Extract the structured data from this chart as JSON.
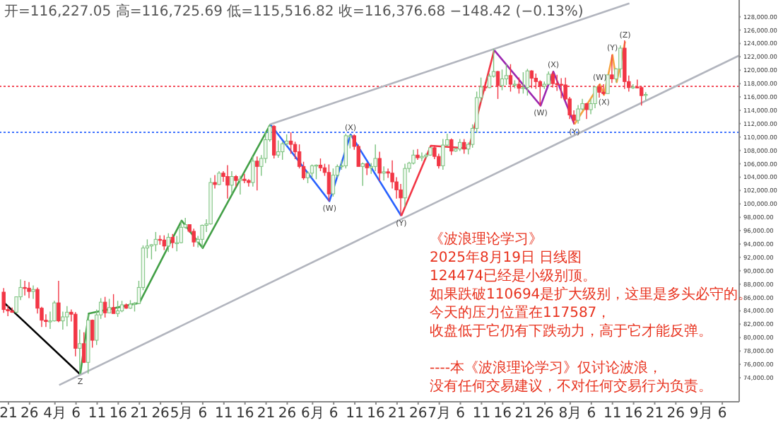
{
  "chart_data": {
    "type": "candlestick",
    "x": [
      "2025-03-20",
      "2025-03-21",
      "2025-03-22",
      "2025-03-23",
      "2025-03-24",
      "2025-03-25",
      "2025-03-26",
      "2025-03-27",
      "2025-03-28",
      "2025-03-29",
      "2025-03-30",
      "2025-03-31",
      "2025-04-01",
      "2025-04-02",
      "2025-04-03",
      "2025-04-04",
      "2025-04-05",
      "2025-04-06",
      "2025-04-07",
      "2025-04-08",
      "2025-04-09",
      "2025-04-10",
      "2025-04-11",
      "2025-04-12",
      "2025-04-13",
      "2025-04-14",
      "2025-04-15",
      "2025-04-16",
      "2025-04-17",
      "2025-04-18",
      "2025-04-19",
      "2025-04-20",
      "2025-04-21",
      "2025-04-22",
      "2025-04-23",
      "2025-04-24",
      "2025-04-25",
      "2025-04-26",
      "2025-04-27",
      "2025-04-28",
      "2025-04-29",
      "2025-04-30",
      "2025-05-01",
      "2025-05-02",
      "2025-05-03",
      "2025-05-04",
      "2025-05-05",
      "2025-05-06",
      "2025-05-07",
      "2025-05-08",
      "2025-05-09",
      "2025-05-10",
      "2025-05-11",
      "2025-05-12",
      "2025-05-13",
      "2025-05-14",
      "2025-05-15",
      "2025-05-16",
      "2025-05-17",
      "2025-05-18",
      "2025-05-19",
      "2025-05-20",
      "2025-05-21",
      "2025-05-22",
      "2025-05-23",
      "2025-05-24",
      "2025-05-25",
      "2025-05-26",
      "2025-05-27",
      "2025-05-28",
      "2025-05-29",
      "2025-05-30",
      "2025-05-31",
      "2025-06-01",
      "2025-06-02",
      "2025-06-03",
      "2025-06-04",
      "2025-06-05",
      "2025-06-06",
      "2025-06-07",
      "2025-06-08",
      "2025-06-09",
      "2025-06-10",
      "2025-06-11",
      "2025-06-12",
      "2025-06-13",
      "2025-06-14",
      "2025-06-15",
      "2025-06-16",
      "2025-06-17",
      "2025-06-18",
      "2025-06-19",
      "2025-06-20",
      "2025-06-21",
      "2025-06-22",
      "2025-06-23",
      "2025-06-24",
      "2025-06-25",
      "2025-06-26",
      "2025-06-27",
      "2025-06-28",
      "2025-06-29",
      "2025-06-30",
      "2025-07-01",
      "2025-07-02",
      "2025-07-03",
      "2025-07-04",
      "2025-07-05",
      "2025-07-06",
      "2025-07-07",
      "2025-07-08",
      "2025-07-09",
      "2025-07-10",
      "2025-07-11",
      "2025-07-12",
      "2025-07-13",
      "2025-07-14",
      "2025-07-15",
      "2025-07-16",
      "2025-07-17",
      "2025-07-18",
      "2025-07-19",
      "2025-07-20",
      "2025-07-21",
      "2025-07-22",
      "2025-07-23",
      "2025-07-24",
      "2025-07-25",
      "2025-07-26",
      "2025-07-27",
      "2025-07-28",
      "2025-07-29",
      "2025-07-30",
      "2025-07-31",
      "2025-08-01",
      "2025-08-02",
      "2025-08-03",
      "2025-08-04",
      "2025-08-05",
      "2025-08-06",
      "2025-08-07",
      "2025-08-08",
      "2025-08-09",
      "2025-08-10",
      "2025-08-11",
      "2025-08-12",
      "2025-08-13",
      "2025-08-14",
      "2025-08-15",
      "2025-08-16",
      "2025-08-17",
      "2025-08-18",
      "2025-08-19"
    ],
    "ohlc": [
      [
        86800,
        87400,
        83700,
        84200
      ],
      [
        84200,
        84800,
        83200,
        84000
      ],
      [
        84000,
        84500,
        83700,
        83800
      ],
      [
        83800,
        86100,
        83600,
        86100
      ],
      [
        86100,
        88700,
        85600,
        87500
      ],
      [
        87500,
        88500,
        86300,
        87400
      ],
      [
        87400,
        88300,
        85900,
        86900
      ],
      [
        86900,
        87800,
        85800,
        87200
      ],
      [
        87200,
        87500,
        83600,
        84400
      ],
      [
        84400,
        84600,
        81600,
        82600
      ],
      [
        82600,
        83500,
        81600,
        82400
      ],
      [
        82400,
        83900,
        81300,
        82500
      ],
      [
        82500,
        85500,
        82400,
        85200
      ],
      [
        85200,
        88500,
        82300,
        82500
      ],
      [
        82500,
        83900,
        81200,
        83100
      ],
      [
        83100,
        84700,
        81700,
        83800
      ],
      [
        83800,
        84200,
        82400,
        83500
      ],
      [
        83500,
        83800,
        77200,
        78400
      ],
      [
        78400,
        81200,
        74500,
        79100
      ],
      [
        79100,
        80800,
        76200,
        76300
      ],
      [
        76300,
        83500,
        74600,
        82600
      ],
      [
        82600,
        82700,
        78500,
        79600
      ],
      [
        79600,
        84200,
        78900,
        83400
      ],
      [
        83400,
        85900,
        82800,
        85300
      ],
      [
        85300,
        86100,
        83000,
        83700
      ],
      [
        83700,
        85800,
        83700,
        84500
      ],
      [
        84500,
        86500,
        83600,
        83600
      ],
      [
        83600,
        85500,
        83100,
        84000
      ],
      [
        84000,
        85500,
        83800,
        84900
      ],
      [
        84900,
        85100,
        84300,
        84400
      ],
      [
        84400,
        85600,
        84300,
        85000
      ],
      [
        85000,
        85300,
        83900,
        85100
      ],
      [
        85100,
        88500,
        85100,
        87500
      ],
      [
        87500,
        93800,
        87100,
        93400
      ],
      [
        93400,
        94700,
        91900,
        93700
      ],
      [
        93700,
        94000,
        91700,
        93900
      ],
      [
        93900,
        95800,
        92900,
        94700
      ],
      [
        94700,
        95300,
        93900,
        94600
      ],
      [
        94600,
        95300,
        93100,
        93700
      ],
      [
        93700,
        95600,
        92800,
        95000
      ],
      [
        95000,
        95500,
        93400,
        94200
      ],
      [
        94200,
        95200,
        92900,
        94200
      ],
      [
        94200,
        97400,
        94100,
        96500
      ],
      [
        96500,
        97900,
        96300,
        96900
      ],
      [
        96900,
        96900,
        95700,
        95900
      ],
      [
        95900,
        96300,
        93600,
        94300
      ],
      [
        94300,
        95200,
        93500,
        94700
      ],
      [
        94700,
        96900,
        93400,
        96800
      ],
      [
        96800,
        97700,
        95800,
        97000
      ],
      [
        97000,
        103900,
        96900,
        103200
      ],
      [
        103200,
        104300,
        102300,
        102900
      ],
      [
        102900,
        104900,
        102800,
        104600
      ],
      [
        104600,
        104900,
        103300,
        104100
      ],
      [
        104100,
        105800,
        100800,
        102800
      ],
      [
        102800,
        104900,
        101500,
        104100
      ],
      [
        104100,
        104300,
        102600,
        103500
      ],
      [
        103500,
        104200,
        101400,
        103700
      ],
      [
        103700,
        104500,
        103100,
        103500
      ],
      [
        103500,
        103700,
        102600,
        103200
      ],
      [
        103200,
        107100,
        102600,
        106400
      ],
      [
        106400,
        107100,
        102000,
        105600
      ],
      [
        105600,
        107300,
        104200,
        106800
      ],
      [
        106800,
        110800,
        106100,
        109600
      ],
      [
        109600,
        111900,
        109300,
        111600
      ],
      [
        111600,
        111800,
        106800,
        107300
      ],
      [
        107300,
        109500,
        106900,
        107800
      ],
      [
        107800,
        109300,
        106600,
        109000
      ],
      [
        109000,
        110400,
        108700,
        109400
      ],
      [
        109400,
        110700,
        107500,
        108900
      ],
      [
        108900,
        109300,
        106700,
        107800
      ],
      [
        107800,
        108900,
        105300,
        105600
      ],
      [
        105600,
        106300,
        103600,
        103900
      ],
      [
        103900,
        104900,
        103100,
        104600
      ],
      [
        104600,
        105900,
        103900,
        105700
      ],
      [
        105700,
        105900,
        103700,
        105800
      ],
      [
        105800,
        106800,
        104900,
        105400
      ],
      [
        105400,
        106000,
        104200,
        104700
      ],
      [
        104700,
        105900,
        100400,
        101500
      ],
      [
        101500,
        105300,
        101100,
        104300
      ],
      [
        104300,
        105900,
        103900,
        105600
      ],
      [
        105600,
        106500,
        105100,
        105700
      ],
      [
        105700,
        110500,
        105300,
        110200
      ],
      [
        110200,
        110400,
        108300,
        110200
      ],
      [
        110200,
        110400,
        108100,
        108600
      ],
      [
        108600,
        108900,
        105600,
        105600
      ],
      [
        105600,
        106200,
        102700,
        106000
      ],
      [
        106000,
        106200,
        104300,
        105400
      ],
      [
        105400,
        106100,
        104500,
        105600
      ],
      [
        105600,
        108900,
        104900,
        106800
      ],
      [
        106800,
        107800,
        103400,
        104600
      ],
      [
        104600,
        105600,
        103500,
        104800
      ],
      [
        104800,
        105300,
        103900,
        104600
      ],
      [
        104600,
        106500,
        102300,
        103300
      ],
      [
        103300,
        104000,
        100800,
        102100
      ],
      [
        102100,
        103000,
        98200,
        100900
      ],
      [
        100900,
        106000,
        99600,
        105300
      ],
      [
        105300,
        106300,
        104700,
        106100
      ],
      [
        106100,
        108100,
        105900,
        107300
      ],
      [
        107300,
        108200,
        106600,
        106900
      ],
      [
        106900,
        107700,
        106400,
        107100
      ],
      [
        107100,
        107600,
        106800,
        107300
      ],
      [
        107300,
        108500,
        107200,
        108400
      ],
      [
        108400,
        108800,
        106700,
        107100
      ],
      [
        107100,
        107500,
        105300,
        105700
      ],
      [
        105700,
        109700,
        105100,
        108800
      ],
      [
        108800,
        110500,
        108600,
        109600
      ],
      [
        109600,
        109800,
        107300,
        107900
      ],
      [
        107900,
        108400,
        107800,
        108200
      ],
      [
        108200,
        109700,
        107900,
        109200
      ],
      [
        109200,
        109700,
        107500,
        108200
      ],
      [
        108200,
        109200,
        107400,
        108900
      ],
      [
        108900,
        111900,
        108400,
        111300
      ],
      [
        111300,
        116800,
        110600,
        115900
      ],
      [
        115900,
        118900,
        115200,
        117500
      ],
      [
        117500,
        118200,
        116900,
        117400
      ],
      [
        117400,
        119500,
        117300,
        119100
      ],
      [
        119100,
        123200,
        118900,
        119800
      ],
      [
        119800,
        119900,
        115700,
        117700
      ],
      [
        117700,
        120100,
        117000,
        118700
      ],
      [
        118700,
        120900,
        117800,
        119200
      ],
      [
        119200,
        120900,
        116800,
        117900
      ],
      [
        117900,
        118500,
        117300,
        117900
      ],
      [
        117900,
        118900,
        116500,
        117300
      ],
      [
        117300,
        119700,
        116500,
        117400
      ],
      [
        117400,
        120200,
        116200,
        119900
      ],
      [
        119900,
        120000,
        117300,
        118800
      ],
      [
        118800,
        119500,
        117200,
        118300
      ],
      [
        118300,
        118500,
        114700,
        117600
      ],
      [
        117600,
        118300,
        117200,
        117900
      ],
      [
        117900,
        119800,
        117800,
        119400
      ],
      [
        119400,
        119800,
        117400,
        118000
      ],
      [
        118000,
        119300,
        116900,
        117900
      ],
      [
        117900,
        118800,
        115800,
        117800
      ],
      [
        117800,
        118900,
        115500,
        115700
      ],
      [
        115700,
        116000,
        112700,
        113300
      ],
      [
        113300,
        114000,
        111900,
        112500
      ],
      [
        112500,
        114800,
        112000,
        114200
      ],
      [
        114200,
        115700,
        114000,
        115000
      ],
      [
        115000,
        115100,
        112700,
        114100
      ],
      [
        114100,
        115700,
        113400,
        115000
      ],
      [
        115000,
        117600,
        114300,
        117500
      ],
      [
        117500,
        117900,
        115900,
        116700
      ],
      [
        116700,
        117900,
        116300,
        116500
      ],
      [
        116500,
        119300,
        116500,
        119300
      ],
      [
        119300,
        122300,
        118100,
        118700
      ],
      [
        118700,
        120300,
        118200,
        120200
      ],
      [
        120200,
        123700,
        118900,
        123300
      ],
      [
        123300,
        124474,
        117200,
        118300
      ],
      [
        118300,
        119200,
        116800,
        117400
      ],
      [
        117400,
        117900,
        117200,
        117500
      ],
      [
        117500,
        118600,
        117300,
        117400
      ],
      [
        117400,
        117600,
        114700,
        116200
      ],
      [
        116227.05,
        116725.69,
        115516.82,
        116376.68
      ]
    ],
    "series": [
      {
        "type": "line",
        "color": "#000000",
        "x": [
          "2025-03-20",
          "2025-04-07"
        ],
        "values": [
          85200,
          74500
        ]
      },
      {
        "type": "line",
        "color": "#43a047",
        "x": [
          "2025-04-07",
          "2025-04-09",
          "2025-04-21",
          "2025-05-01",
          "2025-05-06",
          "2025-05-22"
        ],
        "values": [
          74500,
          83600,
          85200,
          97500,
          93400,
          111900
        ]
      },
      {
        "type": "line",
        "color": "#2962ff",
        "x": [
          "2025-05-22",
          "2025-06-05",
          "2025-06-10",
          "2025-06-22"
        ],
        "values": [
          111900,
          100400,
          110400,
          98200
        ]
      },
      {
        "type": "line",
        "color": "#f23645",
        "x": [
          "2025-06-22",
          "2025-06-29",
          "2025-07-08",
          "2025-07-14"
        ],
        "values": [
          98200,
          108700,
          108300,
          123000
        ]
      },
      {
        "type": "line",
        "color": "#9c27b0",
        "x": [
          "2025-07-14",
          "2025-07-25",
          "2025-07-28",
          "2025-08-02"
        ],
        "values": [
          123000,
          114700,
          119800,
          111900
        ]
      },
      {
        "type": "line",
        "color": "#f7a440",
        "x": [
          "2025-08-02",
          "2025-08-08",
          "2025-08-09",
          "2025-08-11",
          "2025-08-12",
          "2025-08-14"
        ],
        "values": [
          111900,
          117900,
          116300,
          122300,
          118200,
          124300
        ]
      },
      {
        "type": "line",
        "color": "#b2b5be",
        "x": [
          "2025-04-02",
          "2025-09-10"
        ],
        "values": [
          72900,
          122200
        ]
      },
      {
        "type": "line",
        "color": "#b2b5be",
        "x": [
          "2025-05-22",
          "2025-08-15"
        ],
        "values": [
          111900,
          130000
        ]
      }
    ],
    "ref_lines": [
      {
        "axis": "y",
        "value": 117587,
        "color": "#f23645",
        "line_style": "dotted"
      },
      {
        "axis": "y",
        "value": 110694,
        "color": "#2962ff",
        "line_style": "dotted"
      }
    ],
    "annotations": [
      "开=116,227.05 高=116,725.69 低=115,516.82 收=116,376.68 −148.42 (−0.13%)",
      "《波浪理论学习》",
      "2025年8月19日 日线图",
      "124474已经是小级别顶。",
      "如果跌破110694是扩大级别，这里是多头必守的。",
      "今天的压力位置在117587，",
      "收盘低于它仍有下跌动力，高于它才能反弹。",
      "----本《波浪理论学习》仅讨论波浪，",
      "没有任何交易建议，不对任何交易行为负责。",
      {
        "text": "Z",
        "x": "2025-04-07",
        "y": 74500
      },
      {
        "text": "(W)",
        "x": "2025-06-05",
        "y": 100400
      },
      {
        "text": "(X)",
        "x": "2025-06-10",
        "y": 110400
      },
      {
        "text": "(Y)",
        "x": "2025-06-22",
        "y": 98200
      },
      {
        "text": "(W)",
        "x": "2025-07-25",
        "y": 114700
      },
      {
        "text": "(X)",
        "x": "2025-07-28",
        "y": 119800
      },
      {
        "text": "(Y)",
        "x": "2025-08-02",
        "y": 111900
      },
      {
        "text": "(W)",
        "x": "2025-08-08",
        "y": 117900
      },
      {
        "text": "(X)",
        "x": "2025-08-09",
        "y": 116300
      },
      {
        "text": "(Y)",
        "x": "2025-08-11",
        "y": 122300
      },
      {
        "text": "(Z)",
        "x": "2025-08-14",
        "y": 124300
      }
    ],
    "xlim": [
      "2025-03-19",
      "2025-09-10"
    ],
    "xticks": [
      {
        "value": "2025-03-21",
        "label": "21"
      },
      {
        "value": "2025-03-26",
        "label": "26"
      },
      {
        "value": "2025-04-01",
        "label": "4月"
      },
      {
        "value": "2025-04-06",
        "label": "6"
      },
      {
        "value": "2025-04-11",
        "label": "11"
      },
      {
        "value": "2025-04-16",
        "label": "16"
      },
      {
        "value": "2025-04-21",
        "label": "21"
      },
      {
        "value": "2025-04-26",
        "label": "26"
      },
      {
        "value": "2025-05-01",
        "label": "5月"
      },
      {
        "value": "2025-05-06",
        "label": "6"
      },
      {
        "value": "2025-05-11",
        "label": "11"
      },
      {
        "value": "2025-05-16",
        "label": "16"
      },
      {
        "value": "2025-05-21",
        "label": "21"
      },
      {
        "value": "2025-05-26",
        "label": "26"
      },
      {
        "value": "2025-06-01",
        "label": "6月"
      },
      {
        "value": "2025-06-06",
        "label": "6"
      },
      {
        "value": "2025-06-11",
        "label": "11"
      },
      {
        "value": "2025-06-16",
        "label": "16"
      },
      {
        "value": "2025-06-21",
        "label": "21"
      },
      {
        "value": "2025-06-26",
        "label": "26"
      },
      {
        "value": "2025-07-01",
        "label": "7月"
      },
      {
        "value": "2025-07-06",
        "label": "6"
      },
      {
        "value": "2025-07-11",
        "label": "11"
      },
      {
        "value": "2025-07-16",
        "label": "16"
      },
      {
        "value": "2025-07-21",
        "label": "21"
      },
      {
        "value": "2025-07-26",
        "label": "26"
      },
      {
        "value": "2025-08-01",
        "label": "8月"
      },
      {
        "value": "2025-08-06",
        "label": "6"
      },
      {
        "value": "2025-08-11",
        "label": "11"
      },
      {
        "value": "2025-08-16",
        "label": "16"
      },
      {
        "value": "2025-08-21",
        "label": "21"
      },
      {
        "value": "2025-08-26",
        "label": "26"
      },
      {
        "value": "2025-09-01",
        "label": "9月"
      },
      {
        "value": "2025-09-06",
        "label": "6"
      }
    ],
    "ylim": [
      70400,
      130500
    ],
    "yticks": [
      {
        "value": 74000,
        "label": "74,000.00"
      },
      {
        "value": 76000,
        "label": "76,000.00"
      },
      {
        "value": 78000,
        "label": "78,000.00"
      },
      {
        "value": 80000,
        "label": "80,000.00"
      },
      {
        "value": 82000,
        "label": "82,000.00"
      },
      {
        "value": 84000,
        "label": "84,000.00"
      },
      {
        "value": 86000,
        "label": "86,000.00"
      },
      {
        "value": 88000,
        "label": "88,000.00"
      },
      {
        "value": 90000,
        "label": "90,000.00"
      },
      {
        "value": 92000,
        "label": "92,000.00"
      },
      {
        "value": 94000,
        "label": "94,000.00"
      },
      {
        "value": 96000,
        "label": "96,000.00"
      },
      {
        "value": 98000,
        "label": "98,000.00"
      },
      {
        "value": 100000,
        "label": "100,000.00"
      },
      {
        "value": 102000,
        "label": "102,000.00"
      },
      {
        "value": 104000,
        "label": "104,000.00"
      },
      {
        "value": 106000,
        "label": "106,000.00"
      },
      {
        "value": 108000,
        "label": "108,000.00"
      },
      {
        "value": 110000,
        "label": "110,000.00"
      },
      {
        "value": 112000,
        "label": "112,000.00"
      },
      {
        "value": 114000,
        "label": "114,000.00"
      },
      {
        "value": 116000,
        "label": "116,000.00"
      },
      {
        "value": 118000,
        "label": "118,000.00"
      },
      {
        "value": 120000,
        "label": "120,000.00"
      },
      {
        "value": 122000,
        "label": "122,000.00"
      },
      {
        "value": 124000,
        "label": "124,000.00"
      },
      {
        "value": 126000,
        "label": "126,000.00"
      },
      {
        "value": 128000,
        "label": "128,000.00"
      }
    ]
  }
}
